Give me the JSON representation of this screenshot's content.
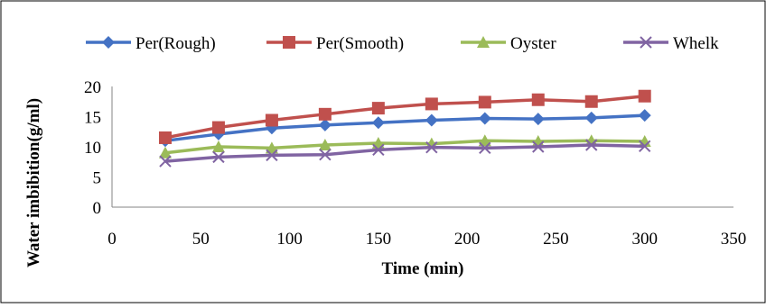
{
  "chart_data": {
    "type": "line",
    "title": "",
    "xlabel": "Time (min)",
    "ylabel": "Water imbibition(g/ml)",
    "xlim": [
      0,
      350
    ],
    "ylim": [
      0,
      20
    ],
    "xticks": [
      0,
      50,
      100,
      150,
      200,
      250,
      300,
      350
    ],
    "yticks": [
      0,
      5,
      10,
      15,
      20
    ],
    "grid": false,
    "legend_position": "top",
    "x": [
      30,
      60,
      90,
      120,
      150,
      180,
      210,
      240,
      270,
      300
    ],
    "series": [
      {
        "name": "Per(Rough)",
        "color": "#4472C4",
        "marker": "diamond",
        "values": [
          11.0,
          12.1,
          13.1,
          13.6,
          14.0,
          14.4,
          14.7,
          14.6,
          14.8,
          15.2
        ]
      },
      {
        "name": "Per(Smooth)",
        "color": "#C0504D",
        "marker": "square",
        "values": [
          11.5,
          13.2,
          14.4,
          15.4,
          16.4,
          17.1,
          17.4,
          17.8,
          17.5,
          18.4
        ]
      },
      {
        "name": "Oyster",
        "color": "#9BBB59",
        "marker": "triangle",
        "values": [
          9.0,
          10.0,
          9.8,
          10.3,
          10.6,
          10.5,
          11.0,
          10.9,
          11.0,
          10.9
        ]
      },
      {
        "name": "Whelk",
        "color": "#8064A2",
        "marker": "x",
        "values": [
          7.6,
          8.3,
          8.6,
          8.7,
          9.5,
          9.9,
          9.8,
          10.0,
          10.3,
          10.1
        ]
      }
    ]
  }
}
